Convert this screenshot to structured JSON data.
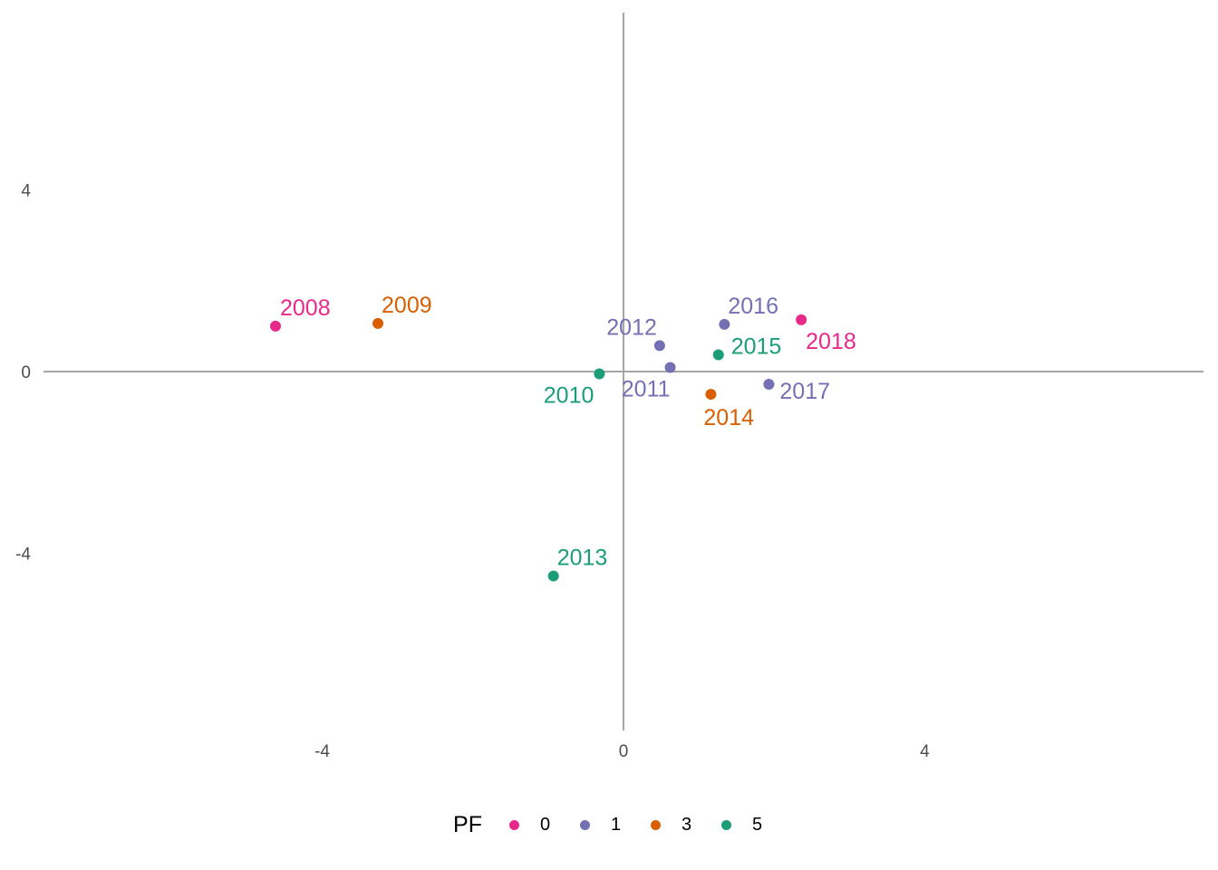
{
  "chart_data": {
    "type": "scatter",
    "xlim": [
      -7.7,
      7.7
    ],
    "ylim": [
      -7.9,
      7.9
    ],
    "x_ticks": [
      -4,
      0,
      4
    ],
    "y_ticks": [
      -4,
      0,
      4
    ],
    "grid": false,
    "reference_lines": [
      0,
      0
    ],
    "legend": {
      "title": "PF",
      "position": "bottom",
      "entries": [
        {
          "label": "0",
          "color": "#e7298a"
        },
        {
          "label": "1",
          "color": "#7570b3"
        },
        {
          "label": "3",
          "color": "#d95f02"
        },
        {
          "label": "5",
          "color": "#1b9e77"
        }
      ]
    },
    "points": [
      {
        "label": "2008",
        "pf": "0",
        "x": -4.62,
        "y": 1.0
      },
      {
        "label": "2009",
        "pf": "3",
        "x": -3.26,
        "y": 1.06
      },
      {
        "label": "2010",
        "pf": "5",
        "x": -0.32,
        "y": -0.05
      },
      {
        "label": "2011",
        "pf": "1",
        "x": 0.62,
        "y": 0.09
      },
      {
        "label": "2012",
        "pf": "1",
        "x": 0.48,
        "y": 0.57
      },
      {
        "label": "2013",
        "pf": "5",
        "x": -0.93,
        "y": -4.5
      },
      {
        "label": "2014",
        "pf": "3",
        "x": 1.16,
        "y": -0.5
      },
      {
        "label": "2015",
        "pf": "5",
        "x": 1.26,
        "y": 0.37
      },
      {
        "label": "2016",
        "pf": "1",
        "x": 1.34,
        "y": 1.04
      },
      {
        "label": "2017",
        "pf": "1",
        "x": 1.93,
        "y": -0.28
      },
      {
        "label": "2018",
        "pf": "0",
        "x": 2.36,
        "y": 1.14
      }
    ]
  }
}
